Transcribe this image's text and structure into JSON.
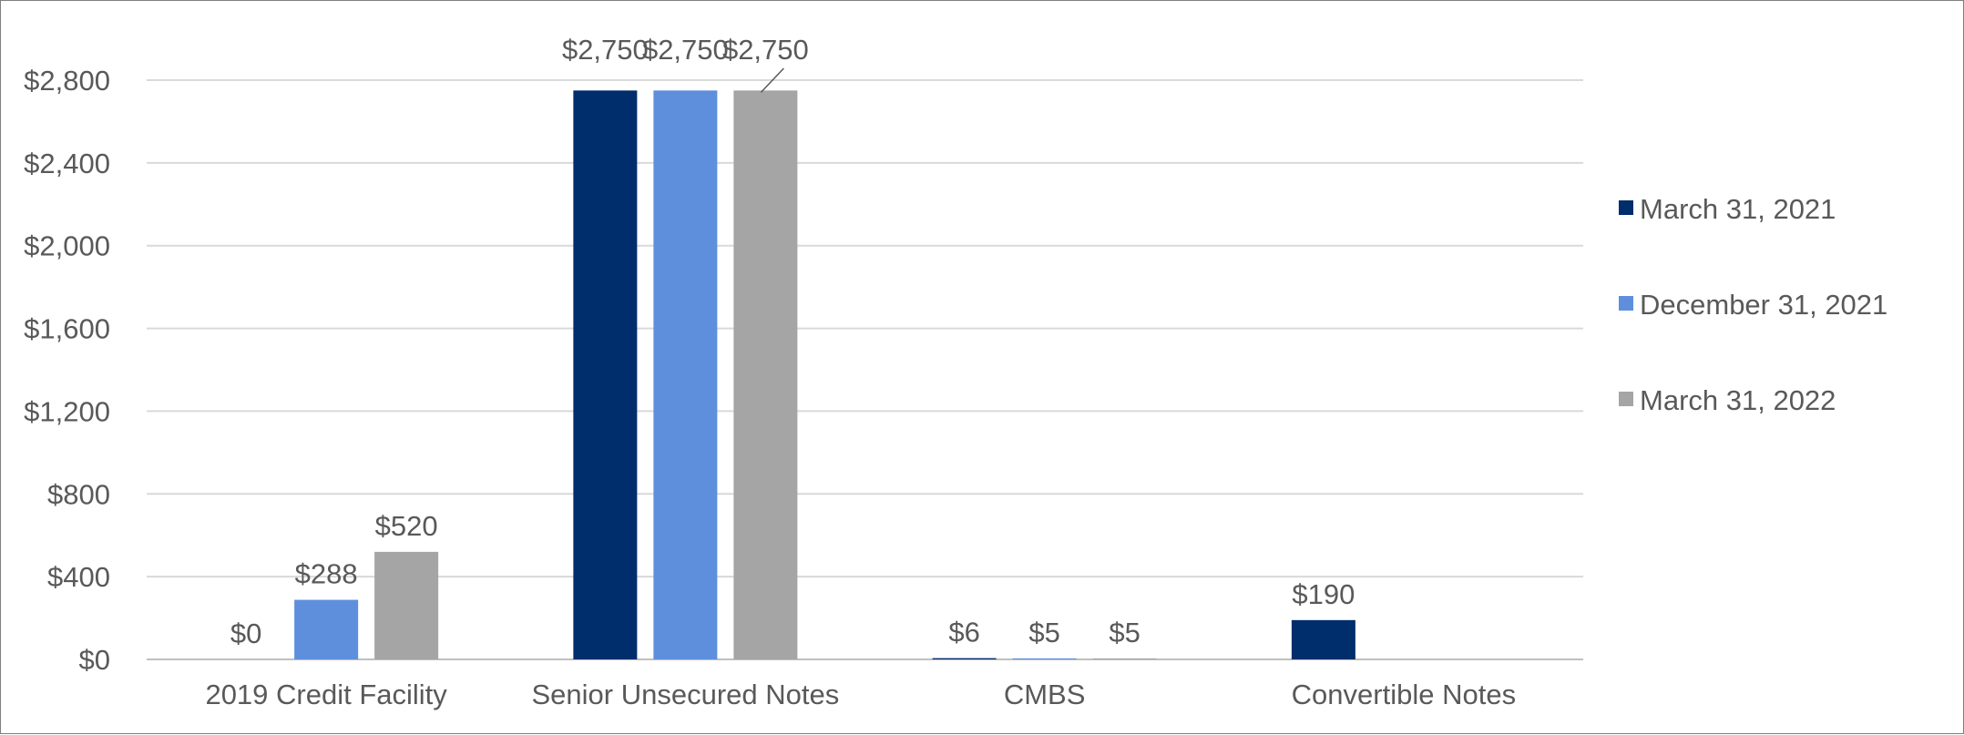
{
  "chart_data": {
    "type": "bar",
    "title": "",
    "xlabel": "",
    "ylabel": "",
    "categories": [
      "2019 Credit Facility",
      "Senior Unsecured Notes",
      "CMBS",
      "Convertible Notes"
    ],
    "series": [
      {
        "name": "March 31, 2021",
        "color": "#002d6b",
        "values": [
          0,
          2750,
          6,
          190
        ],
        "labels": [
          "$0",
          "$2,750",
          "$6",
          "$190"
        ]
      },
      {
        "name": "December 31, 2021",
        "color": "#5e8fdd",
        "values": [
          288,
          2750,
          5,
          0
        ],
        "labels": [
          "$288",
          "$2,750",
          "$5",
          ""
        ]
      },
      {
        "name": "March 31, 2022",
        "color": "#a5a5a5",
        "values": [
          520,
          2750,
          5,
          0
        ],
        "labels": [
          "$520",
          "$2,750",
          "$5",
          ""
        ]
      }
    ],
    "ylim": [
      0,
      2800
    ],
    "yticks": [
      0,
      400,
      800,
      1200,
      1600,
      2000,
      2400,
      2800
    ],
    "ytick_labels": [
      "$0",
      "$400",
      "$800",
      "$1,200",
      "$1,600",
      "$2,000",
      "$2,400",
      "$2,800"
    ],
    "grid": true,
    "legend_position": "right"
  }
}
